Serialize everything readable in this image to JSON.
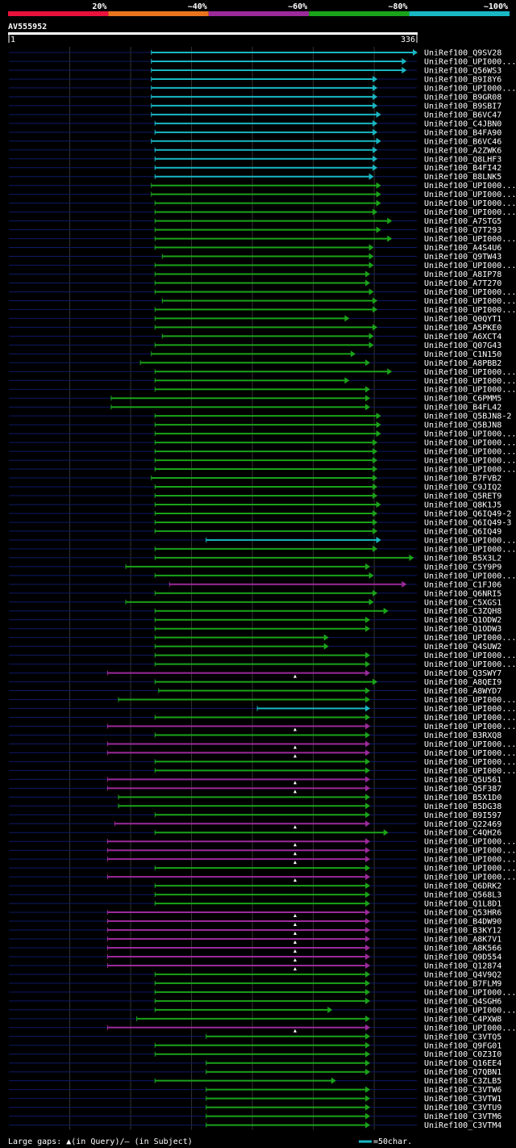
{
  "chart_data": {
    "type": "alignment-overview",
    "title": "AV555952",
    "query_start": 1,
    "query_end": 336,
    "identity_legend": [
      {
        "label": "20%",
        "color": "#e8123c"
      },
      {
        "label": "~40%",
        "color": "#e8741e"
      },
      {
        "label": "~60%",
        "color": "#9b2a9b"
      },
      {
        "label": "~80%",
        "color": "#1aa31a"
      },
      {
        "label": "~100%",
        "color": "#19b7c4"
      }
    ],
    "footer_gap_text": "Large gaps: ▲(in Query)/– (in Subject)",
    "footer_scale_text": "=50char.",
    "colors": {
      "bg": "#000000",
      "track": "#0d1a66",
      "grid": "#333333",
      "cyan": "#19b7c4",
      "green": "#1aa31a",
      "purple": "#9b2a9b",
      "gap_marker": "#ffffff"
    },
    "hits": [
      {
        "name": "UniRef100_Q9SV28",
        "start": 118,
        "end": 336,
        "c": "cyan"
      },
      {
        "name": "UniRef100_UPI000...",
        "start": 118,
        "end": 327,
        "c": "cyan"
      },
      {
        "name": "UniRef100_Q56WS3",
        "start": 118,
        "end": 327,
        "c": "cyan"
      },
      {
        "name": "UniRef100_B9I8Y6",
        "start": 118,
        "end": 303,
        "c": "cyan"
      },
      {
        "name": "UniRef100_UPI000...",
        "start": 118,
        "end": 303,
        "c": "cyan"
      },
      {
        "name": "UniRef100_B9GR08",
        "start": 118,
        "end": 303,
        "c": "cyan"
      },
      {
        "name": "UniRef100_B9SBI7",
        "start": 118,
        "end": 303,
        "c": "cyan"
      },
      {
        "name": "UniRef100_B6VC47",
        "start": 118,
        "end": 306,
        "c": "cyan"
      },
      {
        "name": "UniRef100_C4JBN0",
        "start": 121,
        "end": 303,
        "c": "cyan"
      },
      {
        "name": "UniRef100_B4FA90",
        "start": 121,
        "end": 303,
        "c": "cyan"
      },
      {
        "name": "UniRef100_B6VC46",
        "start": 118,
        "end": 306,
        "c": "cyan"
      },
      {
        "name": "UniRef100_A2ZWK6",
        "start": 121,
        "end": 303,
        "c": "cyan"
      },
      {
        "name": "UniRef100_Q8LHF3",
        "start": 121,
        "end": 303,
        "c": "cyan"
      },
      {
        "name": "UniRef100_B4FI42",
        "start": 121,
        "end": 303,
        "c": "cyan"
      },
      {
        "name": "UniRef100_B8LNK5",
        "start": 121,
        "end": 300,
        "c": "cyan"
      },
      {
        "name": "UniRef100_UPI000...",
        "start": 118,
        "end": 306,
        "c": "green"
      },
      {
        "name": "UniRef100_UPI000...",
        "start": 118,
        "end": 306,
        "c": "green"
      },
      {
        "name": "UniRef100_UPI000...",
        "start": 121,
        "end": 306,
        "c": "green"
      },
      {
        "name": "UniRef100_UPI000...",
        "start": 121,
        "end": 303,
        "c": "green"
      },
      {
        "name": "UniRef100_A7STG5",
        "start": 121,
        "end": 315,
        "c": "green"
      },
      {
        "name": "UniRef100_Q7T293",
        "start": 121,
        "end": 306,
        "c": "green"
      },
      {
        "name": "UniRef100_UPI000...",
        "start": 121,
        "end": 315,
        "c": "green"
      },
      {
        "name": "UniRef100_A4S4U6",
        "start": 121,
        "end": 300,
        "c": "green"
      },
      {
        "name": "UniRef100_Q9TW43",
        "start": 127,
        "end": 300,
        "c": "green"
      },
      {
        "name": "UniRef100_UPI000...",
        "start": 121,
        "end": 300,
        "c": "green"
      },
      {
        "name": "UniRef100_A8IP78",
        "start": 121,
        "end": 297,
        "c": "green"
      },
      {
        "name": "UniRef100_A7T270",
        "start": 121,
        "end": 297,
        "c": "green"
      },
      {
        "name": "UniRef100_UPI000...",
        "start": 121,
        "end": 300,
        "c": "green"
      },
      {
        "name": "UniRef100_UPI000...",
        "start": 127,
        "end": 303,
        "c": "green"
      },
      {
        "name": "UniRef100_UPI000...",
        "start": 121,
        "end": 303,
        "c": "green"
      },
      {
        "name": "UniRef100_Q0QYT1",
        "start": 121,
        "end": 280,
        "c": "green"
      },
      {
        "name": "UniRef100_A5PKE0",
        "start": 121,
        "end": 303,
        "c": "green"
      },
      {
        "name": "UniRef100_A6XCT4",
        "start": 127,
        "end": 300,
        "c": "green"
      },
      {
        "name": "UniRef100_Q07G43",
        "start": 121,
        "end": 300,
        "c": "green"
      },
      {
        "name": "UniRef100_C1N150",
        "start": 118,
        "end": 285,
        "c": "green"
      },
      {
        "name": "UniRef100_A8PBB2",
        "start": 109,
        "end": 297,
        "c": "green"
      },
      {
        "name": "UniRef100_UPI000...",
        "start": 121,
        "end": 315,
        "c": "green"
      },
      {
        "name": "UniRef100_UPI000...",
        "start": 121,
        "end": 280,
        "c": "green"
      },
      {
        "name": "UniRef100_UPI000...",
        "start": 121,
        "end": 297,
        "c": "green"
      },
      {
        "name": "UniRef100_C6PMM5",
        "start": 85,
        "end": 297,
        "c": "green"
      },
      {
        "name": "UniRef100_B4FL42",
        "start": 85,
        "end": 297,
        "c": "green"
      },
      {
        "name": "UniRef100_Q5BJN8-2",
        "start": 121,
        "end": 306,
        "c": "green"
      },
      {
        "name": "UniRef100_Q5BJN8",
        "start": 121,
        "end": 306,
        "c": "green"
      },
      {
        "name": "UniRef100_UPI000...",
        "start": 121,
        "end": 306,
        "c": "green"
      },
      {
        "name": "UniRef100_UPI000...",
        "start": 121,
        "end": 303,
        "c": "green"
      },
      {
        "name": "UniRef100_UPI000...",
        "start": 121,
        "end": 303,
        "c": "green"
      },
      {
        "name": "UniRef100_UPI000...",
        "start": 121,
        "end": 303,
        "c": "green"
      },
      {
        "name": "UniRef100_UPI000...",
        "start": 121,
        "end": 303,
        "c": "green"
      },
      {
        "name": "UniRef100_B7FVB2",
        "start": 118,
        "end": 303,
        "c": "green"
      },
      {
        "name": "UniRef100_C9JIQ2",
        "start": 121,
        "end": 303,
        "c": "green"
      },
      {
        "name": "UniRef100_Q5RET9",
        "start": 121,
        "end": 303,
        "c": "green"
      },
      {
        "name": "UniRef100_Q8K1J5",
        "start": 121,
        "end": 306,
        "c": "green"
      },
      {
        "name": "UniRef100_Q6IQ49-2",
        "start": 121,
        "end": 303,
        "c": "green"
      },
      {
        "name": "UniRef100_Q6IQ49-3",
        "start": 121,
        "end": 303,
        "c": "green"
      },
      {
        "name": "UniRef100_Q6IQ49",
        "start": 121,
        "end": 303,
        "c": "green"
      },
      {
        "name": "UniRef100_UPI000...",
        "start": 163,
        "end": 306,
        "c": "cyan"
      },
      {
        "name": "UniRef100_UPI000...",
        "start": 121,
        "end": 303,
        "c": "green"
      },
      {
        "name": "UniRef100_B5X3L2",
        "start": 121,
        "end": 333,
        "c": "green"
      },
      {
        "name": "UniRef100_C5Y9P9",
        "start": 97,
        "end": 297,
        "c": "green"
      },
      {
        "name": "UniRef100_UPI000...",
        "start": 121,
        "end": 300,
        "c": "green"
      },
      {
        "name": "UniRef100_C1FJ06",
        "start": 133,
        "end": 327,
        "c": "purple"
      },
      {
        "name": "UniRef100_Q6NRI5",
        "start": 121,
        "end": 303,
        "c": "green"
      },
      {
        "name": "UniRef100_C5XGS1",
        "start": 97,
        "end": 300,
        "c": "green"
      },
      {
        "name": "UniRef100_C3ZQH8",
        "start": 121,
        "end": 312,
        "c": "green"
      },
      {
        "name": "UniRef100_Q1ODW2",
        "start": 121,
        "end": 297,
        "c": "green"
      },
      {
        "name": "UniRef100_Q1ODW3",
        "start": 121,
        "end": 297,
        "c": "green"
      },
      {
        "name": "UniRef100_UPI000...",
        "start": 121,
        "end": 263,
        "c": "green"
      },
      {
        "name": "UniRef100_Q4SUW2",
        "start": 121,
        "end": 263,
        "c": "green"
      },
      {
        "name": "UniRef100_UPI000...",
        "start": 121,
        "end": 297,
        "c": "green"
      },
      {
        "name": "UniRef100_UPI000...",
        "start": 121,
        "end": 297,
        "c": "green"
      },
      {
        "name": "UniRef100_Q3SWY7",
        "start": 82,
        "end": 297,
        "c": "purple",
        "gap": 236
      },
      {
        "name": "UniRef100_A8QEI9",
        "start": 121,
        "end": 303,
        "c": "green"
      },
      {
        "name": "UniRef100_A8WYD7",
        "start": 124,
        "end": 297,
        "c": "green"
      },
      {
        "name": "UniRef100_UPI000...",
        "start": 91,
        "end": 297,
        "c": "green"
      },
      {
        "name": "UniRef100_UPI000...",
        "start": 205,
        "end": 297,
        "c": "cyan"
      },
      {
        "name": "UniRef100_UPI000...",
        "start": 121,
        "end": 297,
        "c": "green"
      },
      {
        "name": "UniRef100_UPI000...",
        "start": 82,
        "end": 297,
        "c": "purple",
        "gap": 236
      },
      {
        "name": "UniRef100_B3RXQ8",
        "start": 121,
        "end": 297,
        "c": "green"
      },
      {
        "name": "UniRef100_UPI000...",
        "start": 82,
        "end": 297,
        "c": "purple",
        "gap": 236
      },
      {
        "name": "UniRef100_UPI000...",
        "start": 82,
        "end": 297,
        "c": "purple",
        "gap": 236
      },
      {
        "name": "UniRef100_UPI000...",
        "start": 121,
        "end": 297,
        "c": "green"
      },
      {
        "name": "UniRef100_UPI000...",
        "start": 121,
        "end": 297,
        "c": "green"
      },
      {
        "name": "UniRef100_Q5U561",
        "start": 82,
        "end": 297,
        "c": "purple",
        "gap": 236
      },
      {
        "name": "UniRef100_Q5F387",
        "start": 82,
        "end": 297,
        "c": "purple",
        "gap": 236
      },
      {
        "name": "UniRef100_B5X1D0",
        "start": 91,
        "end": 297,
        "c": "green"
      },
      {
        "name": "UniRef100_B5DG38",
        "start": 91,
        "end": 297,
        "c": "green"
      },
      {
        "name": "UniRef100_B9I597",
        "start": 121,
        "end": 297,
        "c": "green"
      },
      {
        "name": "UniRef100_Q22469",
        "start": 88,
        "end": 297,
        "c": "purple",
        "gap": 236
      },
      {
        "name": "UniRef100_C4QH26",
        "start": 121,
        "end": 312,
        "c": "green"
      },
      {
        "name": "UniRef100_UPI000...",
        "start": 82,
        "end": 297,
        "c": "purple",
        "gap": 236
      },
      {
        "name": "UniRef100_UPI000...",
        "start": 82,
        "end": 297,
        "c": "purple",
        "gap": 236
      },
      {
        "name": "UniRef100_UPI000...",
        "start": 82,
        "end": 297,
        "c": "purple",
        "gap": 236
      },
      {
        "name": "UniRef100_UPI000...",
        "start": 121,
        "end": 297,
        "c": "green"
      },
      {
        "name": "UniRef100_UPI000...",
        "start": 82,
        "end": 297,
        "c": "purple",
        "gap": 236
      },
      {
        "name": "UniRef100_Q6DRK2",
        "start": 121,
        "end": 297,
        "c": "green"
      },
      {
        "name": "UniRef100_Q568L3",
        "start": 121,
        "end": 297,
        "c": "green"
      },
      {
        "name": "UniRef100_Q1L8D1",
        "start": 121,
        "end": 297,
        "c": "green"
      },
      {
        "name": "UniRef100_Q53HR6",
        "start": 82,
        "end": 297,
        "c": "purple",
        "gap": 236
      },
      {
        "name": "UniRef100_B4DW90",
        "start": 82,
        "end": 297,
        "c": "purple",
        "gap": 236
      },
      {
        "name": "UniRef100_B3KY12",
        "start": 82,
        "end": 297,
        "c": "purple",
        "gap": 236
      },
      {
        "name": "UniRef100_A8K7V1",
        "start": 82,
        "end": 297,
        "c": "purple",
        "gap": 236
      },
      {
        "name": "UniRef100_A8K566",
        "start": 82,
        "end": 297,
        "c": "purple",
        "gap": 236
      },
      {
        "name": "UniRef100_Q9D554",
        "start": 82,
        "end": 297,
        "c": "purple",
        "gap": 236
      },
      {
        "name": "UniRef100_Q12874",
        "start": 82,
        "end": 297,
        "c": "purple",
        "gap": 236
      },
      {
        "name": "UniRef100_Q4V9Q2",
        "start": 121,
        "end": 297,
        "c": "green"
      },
      {
        "name": "UniRef100_B7FLM9",
        "start": 121,
        "end": 297,
        "c": "green"
      },
      {
        "name": "UniRef100_UPI000...",
        "start": 121,
        "end": 297,
        "c": "green"
      },
      {
        "name": "UniRef100_Q4SGH6",
        "start": 121,
        "end": 297,
        "c": "green"
      },
      {
        "name": "UniRef100_UPI000...",
        "start": 121,
        "end": 266,
        "c": "green"
      },
      {
        "name": "UniRef100_C4PXW8",
        "start": 106,
        "end": 297,
        "c": "green"
      },
      {
        "name": "UniRef100_UPI000...",
        "start": 82,
        "end": 297,
        "c": "purple",
        "gap": 236
      },
      {
        "name": "UniRef100_C3VTQ5",
        "start": 163,
        "end": 297,
        "c": "green"
      },
      {
        "name": "UniRef100_Q9FG01",
        "start": 121,
        "end": 297,
        "c": "green"
      },
      {
        "name": "UniRef100_C0Z3I0",
        "start": 121,
        "end": 297,
        "c": "green"
      },
      {
        "name": "UniRef100_Q16EE4",
        "start": 163,
        "end": 297,
        "c": "green"
      },
      {
        "name": "UniRef100_Q7QBN1",
        "start": 163,
        "end": 297,
        "c": "green"
      },
      {
        "name": "UniRef100_C3ZLB5",
        "start": 121,
        "end": 269,
        "c": "green"
      },
      {
        "name": "UniRef100_C3VTW6",
        "start": 163,
        "end": 297,
        "c": "green"
      },
      {
        "name": "UniRef100_C3VTW1",
        "start": 163,
        "end": 297,
        "c": "green"
      },
      {
        "name": "UniRef100_C3VTU9",
        "start": 163,
        "end": 297,
        "c": "green"
      },
      {
        "name": "UniRef100_C3VTM6",
        "start": 163,
        "end": 297,
        "c": "green"
      },
      {
        "name": "UniRef100_C3VTM4",
        "start": 163,
        "end": 297,
        "c": "green"
      }
    ]
  }
}
